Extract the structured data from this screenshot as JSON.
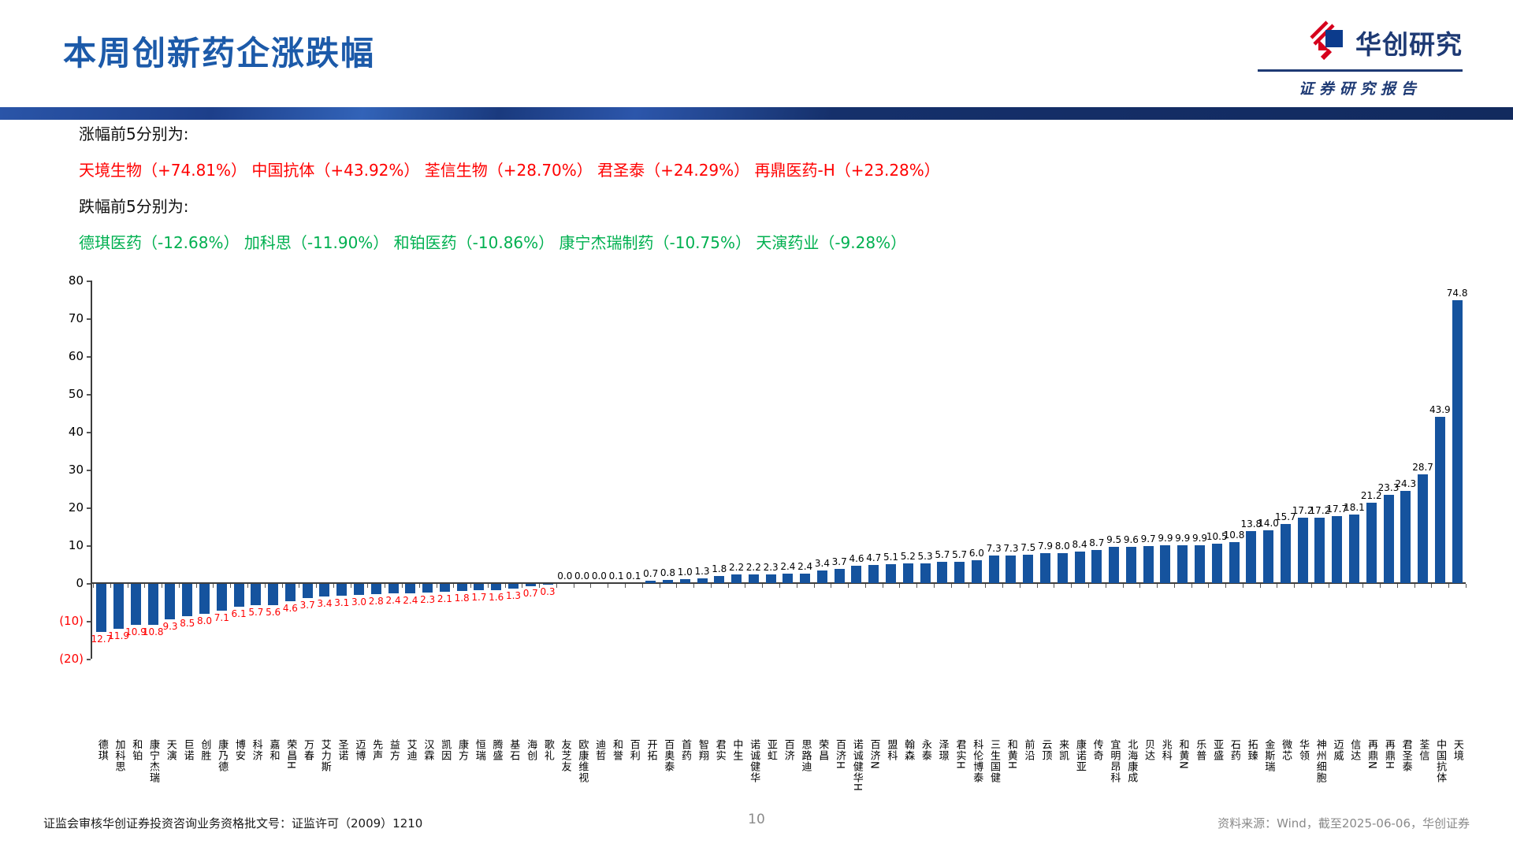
{
  "header": {
    "title": "本周创新药企涨跌幅",
    "logo_title": "华创研究",
    "logo_subtitle": "证券研究报告"
  },
  "summary": {
    "gainers_label": "涨幅前5分别为:",
    "gainers_line": "天境生物（+74.81%） 中国抗体（+43.92%） 荃信生物（+28.70%） 君圣泰（+24.29%） 再鼎医药-H（+23.28%）",
    "losers_label": "跌幅前5分别为:",
    "losers_line": "德琪医药（-12.68%） 加科思（-11.90%） 和铂医药（-10.86%） 康宁杰瑞制药（-10.75%） 天演药业（-9.28%）",
    "gainers_color": "#FF0000",
    "losers_color": "#00B050"
  },
  "chart_data": {
    "type": "bar",
    "title": "",
    "xlabel": "",
    "ylabel": "",
    "ylim": [
      -20,
      80
    ],
    "ytick_step": 10,
    "ytick_labels": [
      "80",
      "70",
      "60",
      "50",
      "40",
      "30",
      "20",
      "10",
      "0",
      "(10)",
      "(20)"
    ],
    "grid": false,
    "legend": false,
    "bar_color": "#15539E",
    "positive_label_color": "#000000",
    "negative_label_color": "#FF0000",
    "categories": [
      "德琪",
      "加科思",
      "和铂",
      "康宁杰瑞",
      "天演",
      "巨诺",
      "创胜",
      "康乃德",
      "博安",
      "科济",
      "嘉和",
      "荣昌H",
      "万春",
      "艾力斯",
      "圣诺",
      "迈博",
      "先声",
      "益方",
      "艾迪",
      "汉霖",
      "凯因",
      "康方",
      "恒瑞",
      "腾盛",
      "基石",
      "海创",
      "歌礼",
      "友芝友",
      "欧康维视",
      "迪哲",
      "和誉",
      "百利",
      "开拓",
      "百奥泰",
      "首药",
      "智翔",
      "君实",
      "中生",
      "诺诚健华",
      "亚虹",
      "百济",
      "思路迪",
      "荣昌",
      "百济H",
      "诺诚健华H",
      "百济N",
      "盟科",
      "翰森",
      "永泰",
      "泽璟",
      "君实H",
      "科伦博泰",
      "三生国健",
      "和黄H",
      "前沿",
      "云顶",
      "来凯",
      "康诺亚",
      "传奇",
      "宜明昂科",
      "北海康成",
      "贝达",
      "兆科",
      "和黄N",
      "乐普",
      "亚盛",
      "石药",
      "拓臻",
      "金斯瑞",
      "微芯",
      "华领",
      "神州细胞",
      "迈威",
      "信达",
      "再鼎N",
      "再鼎H",
      "君圣泰",
      "荃信",
      "中国抗体",
      "天境"
    ],
    "values": [
      -12.7,
      -11.9,
      -10.9,
      -10.8,
      -9.3,
      -8.5,
      -8.0,
      -7.1,
      -6.1,
      -5.7,
      -5.6,
      -4.6,
      -3.7,
      -3.4,
      -3.1,
      -3.0,
      -2.8,
      -2.4,
      -2.4,
      -2.3,
      -2.1,
      -1.8,
      -1.7,
      -1.6,
      -1.3,
      -0.7,
      -0.3,
      0.0,
      0.0,
      0.0,
      0.1,
      0.1,
      0.7,
      0.8,
      1.0,
      1.3,
      1.8,
      2.2,
      2.2,
      2.3,
      2.4,
      2.4,
      3.4,
      3.7,
      4.6,
      4.7,
      5.1,
      5.2,
      5.3,
      5.7,
      5.7,
      6.0,
      7.3,
      7.3,
      7.5,
      7.9,
      8.0,
      8.4,
      8.7,
      9.5,
      9.6,
      9.7,
      9.9,
      9.9,
      9.9,
      10.5,
      10.8,
      13.8,
      14.0,
      15.7,
      17.2,
      17.2,
      17.7,
      18.1,
      21.2,
      23.3,
      24.3,
      28.7,
      43.9,
      74.8
    ]
  },
  "footer": {
    "left": "证监会审核华创证券投资咨询业务资格批文号：证监许可（2009）1210",
    "page_number": "10",
    "right": "资料来源：Wind，截至2025-06-06，华创证券"
  }
}
